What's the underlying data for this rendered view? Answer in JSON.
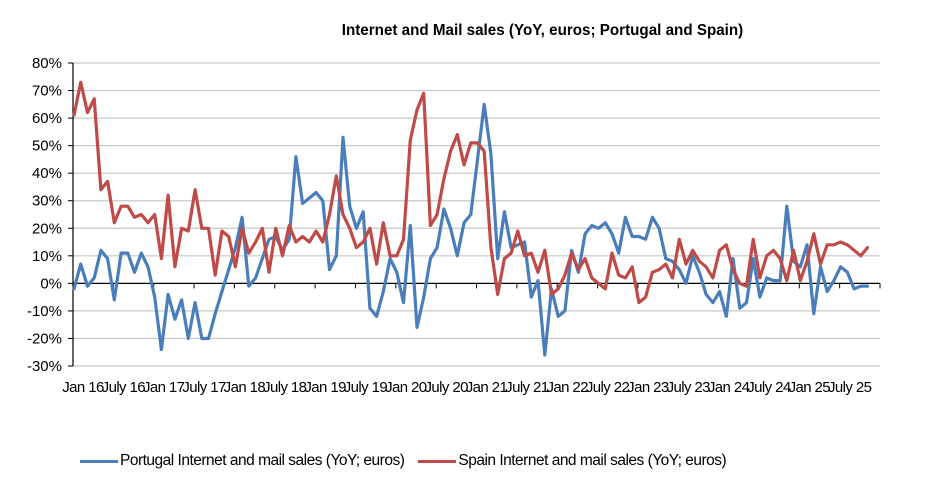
{
  "chart_data": {
    "type": "line",
    "title": "Internet and Mail sales (YoY, euros; Portugal and Spain)",
    "xlabel": "",
    "ylabel": "",
    "ylim": [
      -0.3,
      0.8
    ],
    "yticks": [
      0.8,
      0.7,
      0.6,
      0.5,
      0.4,
      0.3,
      0.2,
      0.1,
      0.0,
      -0.1,
      -0.2,
      -0.3
    ],
    "ytick_labels": [
      "80%",
      "70%",
      "60%",
      "50%",
      "40%",
      "30%",
      "20%",
      "10%",
      "0%",
      "-10%",
      "-20%",
      "-30%"
    ],
    "x_start": "Jan 16",
    "x_months_total": 120,
    "xtick_labels": [
      "Jan 16",
      "July 16",
      "Jan 17",
      "July 17",
      "Jan 18",
      "July 18",
      "Jan 19",
      "July 19",
      "Jan 20",
      "July 20",
      "Jan 21",
      "July 21",
      "Jan 22",
      "July 22",
      "Jan 23",
      "July 23",
      "Jan 24",
      "July 24",
      "Jan 25",
      "July 25"
    ],
    "grid": true,
    "legend_position": "bottom",
    "series": [
      {
        "name": "Portugal Internet and mail sales (YoY; euros)",
        "color": "#4a7ebb",
        "values": [
          -2,
          7,
          -1,
          2,
          12,
          9,
          -6,
          11,
          11,
          4,
          11,
          6,
          -5,
          -24,
          -4,
          -13,
          -6,
          -20,
          -7,
          -20,
          -20,
          -11,
          -3,
          5,
          13,
          24,
          -1,
          2,
          9,
          16,
          17,
          12,
          16,
          46,
          29,
          31,
          33,
          30,
          5,
          10,
          53,
          28,
          20,
          26,
          -9,
          -12,
          -3,
          9,
          4,
          -7,
          21,
          -16,
          -5,
          9,
          13,
          27,
          20,
          10,
          22,
          25,
          45,
          65,
          47,
          9,
          26,
          13,
          14,
          15,
          -5,
          1,
          -26,
          -2,
          -12,
          -10,
          12,
          4,
          18,
          21,
          20,
          22,
          18,
          11,
          24,
          17,
          17,
          16,
          24,
          20,
          9,
          8,
          5,
          0,
          10,
          4,
          -4,
          -7,
          -3,
          -12,
          9,
          -9,
          -7,
          9,
          -5,
          2,
          1,
          1,
          28,
          8,
          6,
          14,
          -11,
          6,
          -3,
          1,
          6,
          4,
          -2,
          -1,
          -1
        ],
        "visible_points": 119
      },
      {
        "name": "Spain Internet and mail sales (YoY; euros)",
        "color": "#be4b48",
        "values": [
          61,
          73,
          62,
          67,
          34,
          37,
          22,
          28,
          28,
          24,
          25,
          22,
          25,
          9,
          32,
          6,
          20,
          19,
          34,
          20,
          20,
          3,
          19,
          17,
          6,
          20,
          11,
          15,
          20,
          4,
          20,
          10,
          21,
          15,
          17,
          15,
          19,
          15,
          25,
          39,
          25,
          20,
          13,
          15,
          20,
          7,
          22,
          10,
          10,
          16,
          52,
          63,
          69,
          21,
          25,
          38,
          48,
          54,
          43,
          51,
          51,
          48,
          13,
          -4,
          9,
          11,
          19,
          10,
          11,
          4,
          12,
          -4,
          -2,
          3,
          11,
          5,
          9,
          2,
          0,
          -2,
          11,
          3,
          2,
          6,
          -7,
          -5,
          4,
          5,
          7,
          2,
          16,
          7,
          12,
          8,
          6,
          2,
          12,
          14,
          5,
          0,
          -1,
          16,
          2,
          10,
          12,
          9,
          1,
          12,
          1,
          8,
          18,
          7,
          14,
          14,
          15,
          14,
          12,
          10,
          13
        ],
        "visible_points": 119
      }
    ]
  }
}
